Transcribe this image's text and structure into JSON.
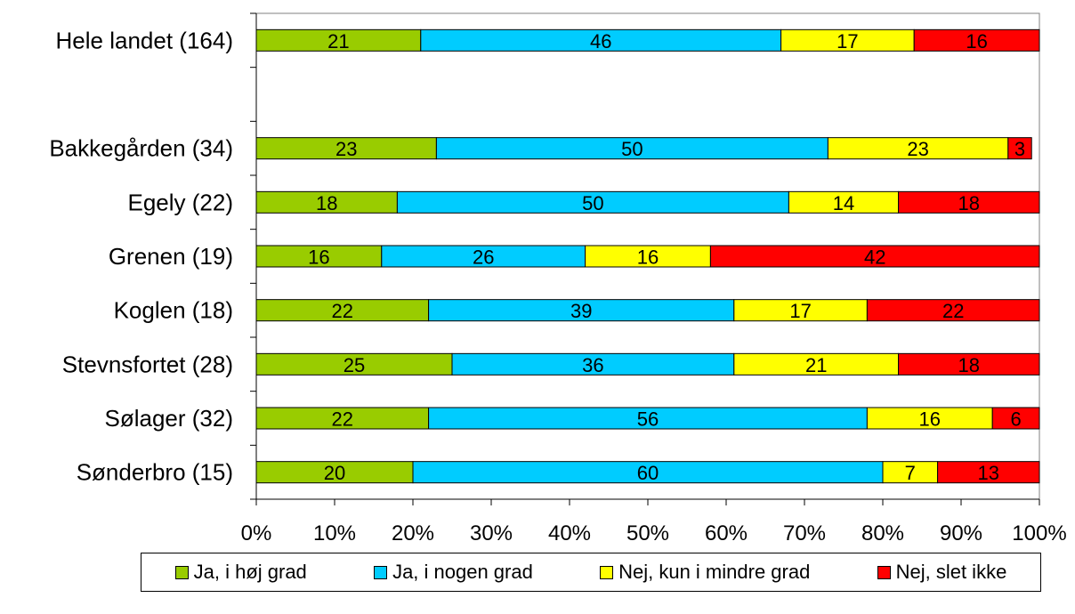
{
  "chart_data": {
    "type": "bar",
    "orientation": "horizontal",
    "stacked": true,
    "categories": [
      "Hele landet (164)",
      "",
      "Bakkegården (34)",
      "Egely (22)",
      "Grenen (19)",
      "Koglen (18)",
      "Stevnsfortet (28)",
      "Sølager (32)",
      "Sønderbro (15)"
    ],
    "series": [
      {
        "name": "Ja, i høj grad",
        "color": "#99cc00",
        "values": [
          21,
          null,
          23,
          18,
          16,
          22,
          25,
          22,
          20
        ]
      },
      {
        "name": "Ja, i nogen grad",
        "color": "#00ccff",
        "values": [
          46,
          null,
          50,
          50,
          26,
          39,
          36,
          56,
          60
        ]
      },
      {
        "name": "Nej, kun i mindre grad",
        "color": "#ffff00",
        "values": [
          17,
          null,
          23,
          14,
          16,
          17,
          21,
          16,
          7
        ]
      },
      {
        "name": "Nej, slet ikke",
        "color": "#ff0000",
        "values": [
          16,
          null,
          3,
          18,
          42,
          22,
          18,
          6,
          13
        ]
      }
    ],
    "xlim": [
      0,
      100
    ],
    "xticks": [
      "0%",
      "10%",
      "20%",
      "30%",
      "40%",
      "50%",
      "60%",
      "70%",
      "80%",
      "90%",
      "100%"
    ],
    "grid": false,
    "legend_position": "bottom"
  }
}
